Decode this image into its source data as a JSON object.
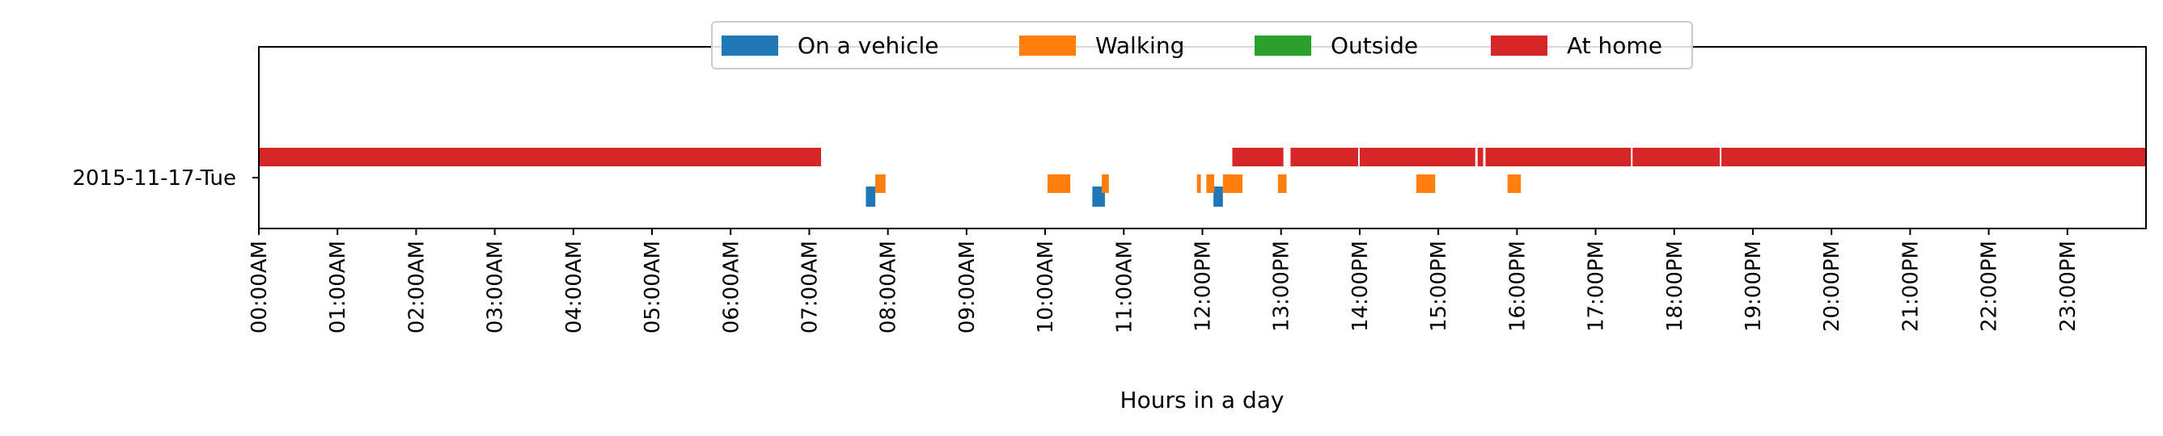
{
  "chart_data": {
    "type": "timeline",
    "xlabel": "Hours in a day",
    "day_label": "2015-11-17-Tue",
    "x_ticks": [
      "00:00AM",
      "01:00AM",
      "02:00AM",
      "03:00AM",
      "04:00AM",
      "05:00AM",
      "06:00AM",
      "07:00AM",
      "08:00AM",
      "09:00AM",
      "10:00AM",
      "11:00AM",
      "12:00PM",
      "13:00PM",
      "14:00PM",
      "15:00PM",
      "16:00PM",
      "17:00PM",
      "18:00PM",
      "19:00PM",
      "20:00PM",
      "21:00PM",
      "22:00PM",
      "23:00PM"
    ],
    "xlim_hours": [
      0,
      24
    ],
    "legend_position": "top-center",
    "series": [
      {
        "name": "On a vehicle",
        "color": "#1f77b4",
        "lane": "bottom",
        "intervals": [
          [
            7.72,
            7.84
          ],
          [
            10.6,
            10.76
          ],
          [
            12.14,
            12.26
          ]
        ]
      },
      {
        "name": "Walking",
        "color": "#ff7f0e",
        "lane": "middle",
        "intervals": [
          [
            7.84,
            7.97
          ],
          [
            10.03,
            10.32
          ],
          [
            10.72,
            10.81
          ],
          [
            11.93,
            11.98
          ],
          [
            12.05,
            12.15
          ],
          [
            12.26,
            12.51
          ],
          [
            12.96,
            13.07
          ],
          [
            14.72,
            14.96
          ],
          [
            15.88,
            16.05
          ]
        ]
      },
      {
        "name": "Outside",
        "color": "#2ca02c",
        "lane": "top",
        "intervals": []
      },
      {
        "name": "At home",
        "color": "#d62728",
        "lane": "top",
        "intervals": [
          [
            0.0,
            7.15
          ],
          [
            12.38,
            13.03
          ],
          [
            13.12,
            13.98
          ],
          [
            14.0,
            15.47
          ],
          [
            15.5,
            15.57
          ],
          [
            15.6,
            17.45
          ],
          [
            17.47,
            18.58
          ],
          [
            18.6,
            24.0
          ]
        ]
      }
    ]
  }
}
